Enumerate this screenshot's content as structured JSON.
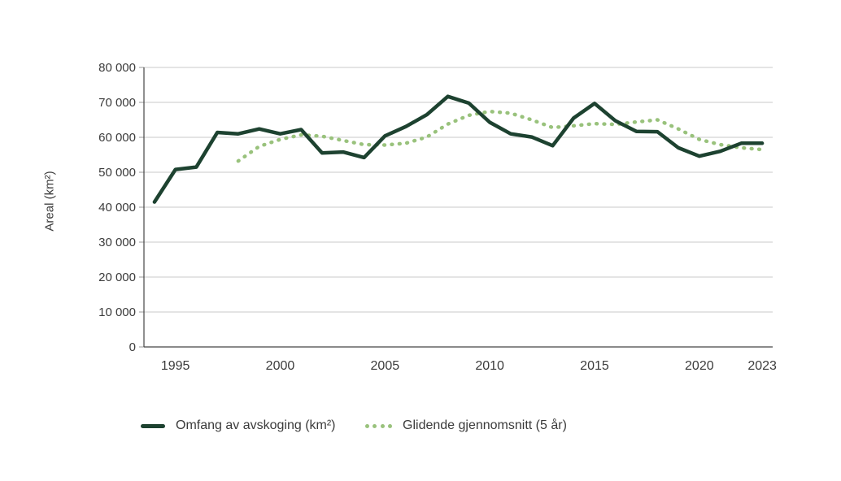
{
  "chart_data": {
    "type": "line",
    "title": "",
    "ylabel": "Areal (km²)",
    "xlabel": "",
    "xlim": [
      1993.5,
      2023.5
    ],
    "ylim": [
      0,
      80000
    ],
    "grid": "horizontal",
    "legend_position": "bottom",
    "x_ticks": [
      1995,
      2000,
      2005,
      2010,
      2015,
      2020,
      2023
    ],
    "y_ticks": [
      0,
      10000,
      20000,
      30000,
      40000,
      50000,
      60000,
      70000,
      80000
    ],
    "y_tick_labels": [
      "0",
      "10 000",
      "20 000",
      "30 000",
      "40 000",
      "50 000",
      "60 000",
      "70 000",
      "80 000"
    ],
    "colors": {
      "series_main": "#1d4230",
      "series_avg": "#99c27c",
      "gridline": "#c9c9c9",
      "axis": "#454545",
      "text": "#3b3b3b"
    },
    "series": [
      {
        "name": "Omfang av avskoging (km²)",
        "style": "solid",
        "color": "#1d4230",
        "x": [
          1994,
          1995,
          1996,
          1997,
          1998,
          1999,
          2000,
          2001,
          2002,
          2003,
          2004,
          2005,
          2006,
          2007,
          2008,
          2009,
          2010,
          2011,
          2012,
          2013,
          2014,
          2015,
          2016,
          2017,
          2018,
          2019,
          2020,
          2021,
          2022,
          2023
        ],
        "values": [
          41500,
          50800,
          51500,
          61400,
          61000,
          62400,
          61000,
          62200,
          55500,
          55800,
          54200,
          60400,
          63100,
          66500,
          71700,
          69800,
          64300,
          61000,
          60100,
          57600,
          65500,
          69700,
          64700,
          61700,
          61600,
          57000,
          54600,
          56000,
          58300,
          58300
        ]
      },
      {
        "name": "Glidende gjennomsnitt (5 år)",
        "style": "dotted",
        "color": "#99c27c",
        "x": [
          1998,
          1999,
          2000,
          2001,
          2002,
          2003,
          2004,
          2005,
          2006,
          2007,
          2008,
          2009,
          2010,
          2011,
          2012,
          2013,
          2014,
          2015,
          2016,
          2017,
          2018,
          2019,
          2020,
          2021,
          2022,
          2023
        ],
        "values": [
          53200,
          57400,
          59400,
          60700,
          60300,
          59100,
          57900,
          57800,
          58300,
          60100,
          63800,
          66300,
          67400,
          66900,
          65000,
          62800,
          63300,
          63900,
          63700,
          64400,
          65000,
          62400,
          59400,
          57900,
          57000,
          56500
        ]
      }
    ]
  }
}
